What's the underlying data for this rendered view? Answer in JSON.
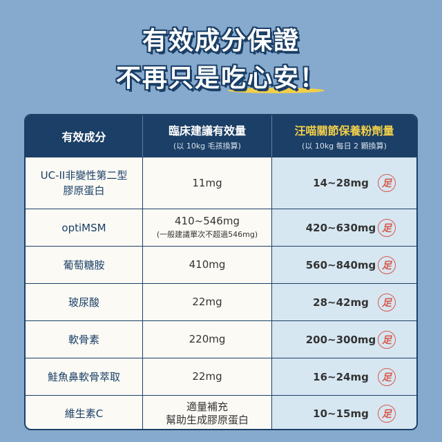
{
  "headline": {
    "line1": "有效成分保證",
    "line2": "不再只是吃心安！"
  },
  "table": {
    "headers": [
      {
        "main": "有效成分",
        "sub": ""
      },
      {
        "main": "臨床建議有效量",
        "sub": "(以 10kg 毛孩換算)"
      },
      {
        "main": "汪喵關節保養粉劑量",
        "sub": "(以 10kg 每日 2 顆換算)"
      }
    ],
    "stamp": "足",
    "rows": [
      {
        "name": "UC-II非變性第二型",
        "name2": "膠原蛋白",
        "clinical": "11mg",
        "clinical2": "",
        "dose": "14~28mg"
      },
      {
        "name": "optiMSM",
        "name2": "",
        "clinical": "410~546mg",
        "clinical2": "(一般建議單次不超過546mg)",
        "dose": "420~630mg"
      },
      {
        "name": "葡萄糖胺",
        "name2": "",
        "clinical": "410mg",
        "clinical2": "",
        "dose": "560~840mg"
      },
      {
        "name": "玻尿酸",
        "name2": "",
        "clinical": "22mg",
        "clinical2": "",
        "dose": "28~42mg"
      },
      {
        "name": "軟骨素",
        "name2": "",
        "clinical": "220mg",
        "clinical2": "",
        "dose": "200~300mg"
      },
      {
        "name": "鮭魚鼻軟骨萃取",
        "name2": "",
        "clinical": "22mg",
        "clinical2": "",
        "dose": "16~24mg"
      },
      {
        "name": "維生素C",
        "name2": "",
        "clinical": "適量補充",
        "clinical2": "幫助生成膠原蛋白",
        "dose": "10~15mg"
      }
    ]
  },
  "colors": {
    "background": "#86aace",
    "header": "#1b3f66",
    "accent": "#f2cf4a",
    "stamp": "#d9574a",
    "highlight_column": "#d6e7f2"
  }
}
